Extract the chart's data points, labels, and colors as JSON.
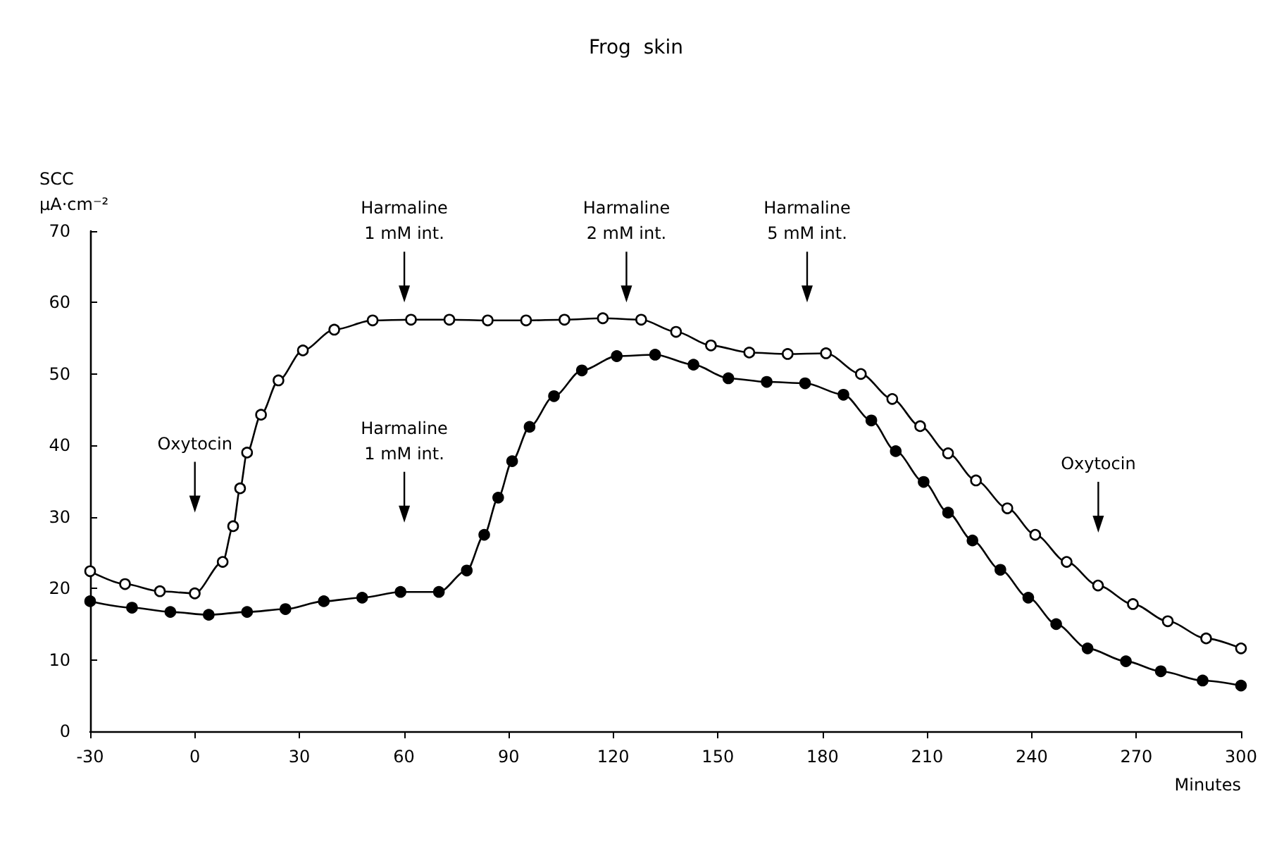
{
  "chart_data": {
    "type": "line",
    "title": "Frog  skin",
    "xlabel": "Minutes",
    "ylabel": "SCC\nμA·cm⁻²",
    "xlim": [
      -30,
      300
    ],
    "xticks": [
      -30,
      0,
      30,
      60,
      90,
      120,
      150,
      180,
      210,
      240,
      270,
      300
    ],
    "ylim": [
      0,
      70
    ],
    "yticks": [
      0,
      10,
      20,
      30,
      40,
      50,
      60,
      70
    ],
    "marker": "circle",
    "series": [
      {
        "color": "#000000",
        "x": [
          -30,
          -20,
          -10,
          0,
          8,
          11,
          13,
          15,
          19,
          24,
          31,
          40,
          51,
          62,
          73,
          84,
          95,
          106,
          117,
          128,
          138,
          148,
          159,
          170,
          181,
          191,
          200,
          208,
          216,
          224,
          233,
          241,
          250,
          259,
          269,
          279,
          290,
          300
        ],
        "values": [
          22.4,
          20.6,
          19.6,
          19.3,
          23.7,
          28.7,
          34.0,
          39.0,
          44.3,
          49.1,
          53.3,
          56.2,
          57.5,
          57.6,
          57.6,
          57.5,
          57.5,
          57.6,
          57.8,
          57.6,
          55.9,
          54.0,
          53.0,
          52.8,
          52.9,
          50.0,
          46.5,
          42.7,
          38.9,
          35.1,
          31.2,
          27.5,
          23.7,
          20.4,
          17.8,
          15.4,
          13.0,
          11.6
        ]
      },
      {
        "color": "#000000",
        "x": [
          -30,
          -18,
          -7,
          4,
          15,
          26,
          37,
          48,
          59,
          70,
          78,
          83,
          87,
          91,
          96,
          103,
          111,
          121,
          132,
          143,
          153,
          164,
          175,
          186,
          194,
          201,
          209,
          216,
          223,
          231,
          239,
          247,
          256,
          267,
          277,
          289,
          300
        ],
        "values": [
          18.2,
          17.3,
          16.7,
          16.3,
          16.7,
          17.1,
          18.2,
          18.7,
          19.5,
          19.5,
          22.5,
          27.5,
          32.7,
          37.8,
          42.6,
          46.9,
          50.5,
          52.5,
          52.7,
          51.3,
          49.4,
          48.9,
          48.7,
          47.1,
          43.5,
          39.2,
          34.9,
          30.6,
          26.7,
          22.6,
          18.7,
          15.0,
          11.6,
          9.8,
          8.4,
          7.1,
          6.4
        ]
      }
    ],
    "annotations": [
      "Harmaline\n1 mM int.",
      "Harmaline\n2 mM int.",
      "Harmaline\n5 mM int.",
      "Oxytocin",
      "Harmaline\n1 mM int.",
      "Oxytocin"
    ]
  }
}
